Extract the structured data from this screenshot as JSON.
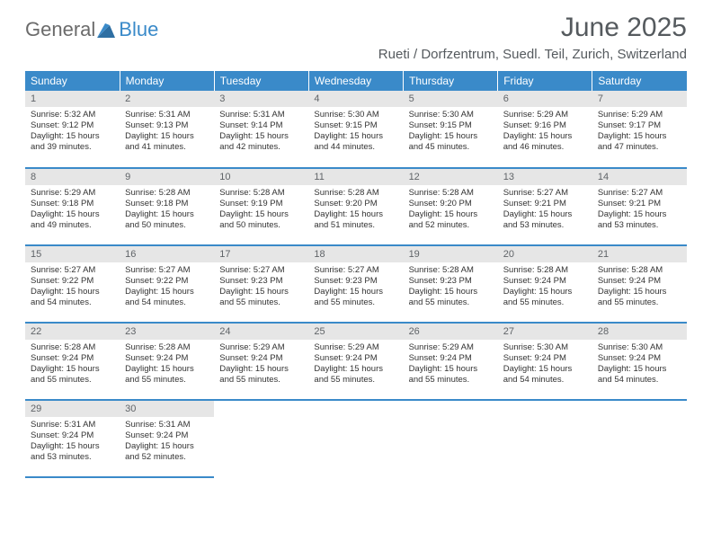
{
  "logo": {
    "text_general": "General",
    "text_blue": "Blue"
  },
  "title": "June 2025",
  "subtitle": "Rueti / Dorfzentrum, Suedl. Teil, Zurich, Switzerland",
  "colors": {
    "header_bg": "#3a8ac9",
    "header_text": "#ffffff",
    "daynum_bg": "#e6e6e6",
    "daynum_text": "#606468",
    "rule": "#3a8ac9",
    "logo_gray": "#6b6b6b",
    "logo_blue": "#3a8ac9",
    "title_color": "#555a5e"
  },
  "weekdays": [
    "Sunday",
    "Monday",
    "Tuesday",
    "Wednesday",
    "Thursday",
    "Friday",
    "Saturday"
  ],
  "weeks": [
    [
      {
        "n": "1",
        "sr": "5:32 AM",
        "ss": "9:12 PM",
        "dl": "15 hours and 39 minutes."
      },
      {
        "n": "2",
        "sr": "5:31 AM",
        "ss": "9:13 PM",
        "dl": "15 hours and 41 minutes."
      },
      {
        "n": "3",
        "sr": "5:31 AM",
        "ss": "9:14 PM",
        "dl": "15 hours and 42 minutes."
      },
      {
        "n": "4",
        "sr": "5:30 AM",
        "ss": "9:15 PM",
        "dl": "15 hours and 44 minutes."
      },
      {
        "n": "5",
        "sr": "5:30 AM",
        "ss": "9:15 PM",
        "dl": "15 hours and 45 minutes."
      },
      {
        "n": "6",
        "sr": "5:29 AM",
        "ss": "9:16 PM",
        "dl": "15 hours and 46 minutes."
      },
      {
        "n": "7",
        "sr": "5:29 AM",
        "ss": "9:17 PM",
        "dl": "15 hours and 47 minutes."
      }
    ],
    [
      {
        "n": "8",
        "sr": "5:29 AM",
        "ss": "9:18 PM",
        "dl": "15 hours and 49 minutes."
      },
      {
        "n": "9",
        "sr": "5:28 AM",
        "ss": "9:18 PM",
        "dl": "15 hours and 50 minutes."
      },
      {
        "n": "10",
        "sr": "5:28 AM",
        "ss": "9:19 PM",
        "dl": "15 hours and 50 minutes."
      },
      {
        "n": "11",
        "sr": "5:28 AM",
        "ss": "9:20 PM",
        "dl": "15 hours and 51 minutes."
      },
      {
        "n": "12",
        "sr": "5:28 AM",
        "ss": "9:20 PM",
        "dl": "15 hours and 52 minutes."
      },
      {
        "n": "13",
        "sr": "5:27 AM",
        "ss": "9:21 PM",
        "dl": "15 hours and 53 minutes."
      },
      {
        "n": "14",
        "sr": "5:27 AM",
        "ss": "9:21 PM",
        "dl": "15 hours and 53 minutes."
      }
    ],
    [
      {
        "n": "15",
        "sr": "5:27 AM",
        "ss": "9:22 PM",
        "dl": "15 hours and 54 minutes."
      },
      {
        "n": "16",
        "sr": "5:27 AM",
        "ss": "9:22 PM",
        "dl": "15 hours and 54 minutes."
      },
      {
        "n": "17",
        "sr": "5:27 AM",
        "ss": "9:23 PM",
        "dl": "15 hours and 55 minutes."
      },
      {
        "n": "18",
        "sr": "5:27 AM",
        "ss": "9:23 PM",
        "dl": "15 hours and 55 minutes."
      },
      {
        "n": "19",
        "sr": "5:28 AM",
        "ss": "9:23 PM",
        "dl": "15 hours and 55 minutes."
      },
      {
        "n": "20",
        "sr": "5:28 AM",
        "ss": "9:24 PM",
        "dl": "15 hours and 55 minutes."
      },
      {
        "n": "21",
        "sr": "5:28 AM",
        "ss": "9:24 PM",
        "dl": "15 hours and 55 minutes."
      }
    ],
    [
      {
        "n": "22",
        "sr": "5:28 AM",
        "ss": "9:24 PM",
        "dl": "15 hours and 55 minutes."
      },
      {
        "n": "23",
        "sr": "5:28 AM",
        "ss": "9:24 PM",
        "dl": "15 hours and 55 minutes."
      },
      {
        "n": "24",
        "sr": "5:29 AM",
        "ss": "9:24 PM",
        "dl": "15 hours and 55 minutes."
      },
      {
        "n": "25",
        "sr": "5:29 AM",
        "ss": "9:24 PM",
        "dl": "15 hours and 55 minutes."
      },
      {
        "n": "26",
        "sr": "5:29 AM",
        "ss": "9:24 PM",
        "dl": "15 hours and 55 minutes."
      },
      {
        "n": "27",
        "sr": "5:30 AM",
        "ss": "9:24 PM",
        "dl": "15 hours and 54 minutes."
      },
      {
        "n": "28",
        "sr": "5:30 AM",
        "ss": "9:24 PM",
        "dl": "15 hours and 54 minutes."
      }
    ],
    [
      {
        "n": "29",
        "sr": "5:31 AM",
        "ss": "9:24 PM",
        "dl": "15 hours and 53 minutes."
      },
      {
        "n": "30",
        "sr": "5:31 AM",
        "ss": "9:24 PM",
        "dl": "15 hours and 52 minutes."
      },
      null,
      null,
      null,
      null,
      null
    ]
  ],
  "labels": {
    "sunrise": "Sunrise:",
    "sunset": "Sunset:",
    "daylight": "Daylight:"
  }
}
